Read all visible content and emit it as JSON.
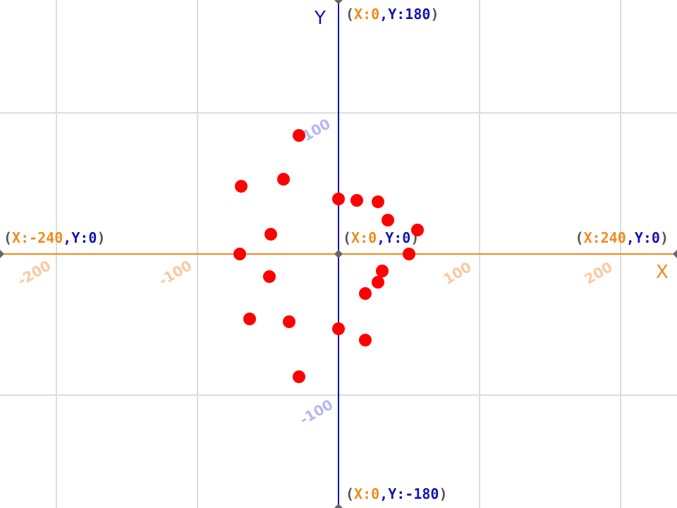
{
  "colors": {
    "x_axis": "#f08a1c",
    "y_axis": "#1414b4",
    "grid": "#dddddd",
    "point": "#ff0000",
    "x_tick": "#f9c9a0",
    "y_tick": "#b8b8f0",
    "paren": "#555555",
    "marker": "#666666"
  },
  "chart_data": {
    "type": "scatter",
    "xlim": [
      -240,
      240
    ],
    "ylim": [
      -180,
      180
    ],
    "grid": true,
    "grid_step": 100,
    "xlabel": "X",
    "ylabel": "Y",
    "x_ticks": [
      {
        "value": -200,
        "label": "-200"
      },
      {
        "value": -100,
        "label": "-100"
      },
      {
        "value": 100,
        "label": "100"
      },
      {
        "value": 200,
        "label": "200"
      }
    ],
    "y_ticks": [
      {
        "value": 100,
        "label": "100"
      },
      {
        "value": -100,
        "label": "-100"
      }
    ],
    "corner_labels": {
      "top": {
        "x": "X:0",
        "sep": ",",
        "y": "Y:180"
      },
      "bottom": {
        "x": "X:0",
        "sep": ",",
        "y": "Y:-180"
      },
      "left": {
        "x": "X:-240",
        "sep": ",",
        "y": "Y:0"
      },
      "right": {
        "x": "X:240",
        "sep": ",",
        "y": "Y:0"
      },
      "origin": {
        "x": "X:0",
        "sep": ",",
        "y": "Y:0"
      }
    },
    "points": [
      {
        "x": -28,
        "y": 84
      },
      {
        "x": -39,
        "y": 53
      },
      {
        "x": -69,
        "y": 48
      },
      {
        "x": 0,
        "y": 39
      },
      {
        "x": 13,
        "y": 38
      },
      {
        "x": 28,
        "y": 37
      },
      {
        "x": 35,
        "y": 24
      },
      {
        "x": 56,
        "y": 17
      },
      {
        "x": -48,
        "y": 14
      },
      {
        "x": -70,
        "y": 0
      },
      {
        "x": 50,
        "y": 0
      },
      {
        "x": 31,
        "y": -12
      },
      {
        "x": -49,
        "y": -16
      },
      {
        "x": 28,
        "y": -20
      },
      {
        "x": 19,
        "y": -28
      },
      {
        "x": -63,
        "y": -46
      },
      {
        "x": -35,
        "y": -48
      },
      {
        "x": 0,
        "y": -53
      },
      {
        "x": 19,
        "y": -61
      },
      {
        "x": -28,
        "y": -87
      }
    ]
  }
}
